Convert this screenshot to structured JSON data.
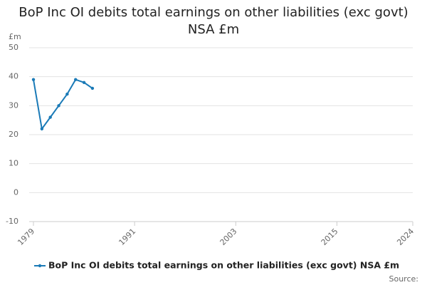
{
  "chart_data": {
    "type": "line",
    "title": "BoP Inc OI debits total earnings on other liabilities (exc govt) NSA £m",
    "y_unit": "£m",
    "x": [
      1979,
      1980,
      1981,
      1982,
      1983,
      1984,
      1985,
      1986
    ],
    "series": [
      {
        "name": "BoP Inc OI debits total earnings on other liabilities (exc govt) NSA £m",
        "color": "#1a7ab7",
        "values": [
          39,
          22,
          26,
          30,
          34,
          39,
          38,
          36
        ]
      }
    ],
    "xlim": [
      1979,
      2024
    ],
    "xticks": [
      1979,
      1991,
      2003,
      2015,
      2024
    ],
    "ylim": [
      -10,
      50
    ],
    "yticks": [
      -10,
      0,
      10,
      20,
      30,
      40,
      50
    ],
    "grid": true,
    "source": "Source:"
  }
}
